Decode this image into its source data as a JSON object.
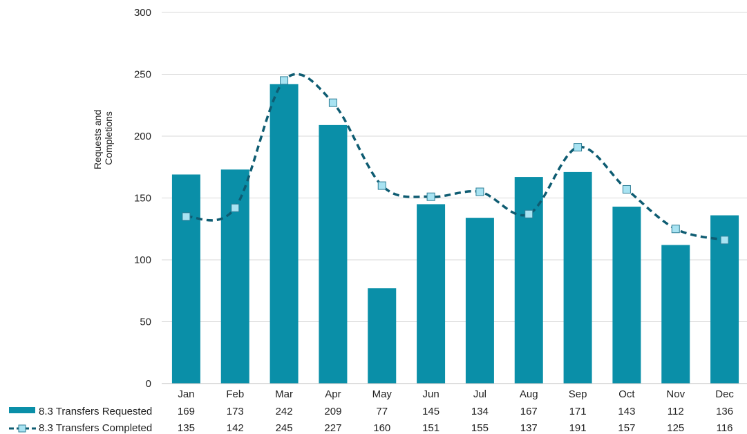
{
  "chart_data": {
    "type": "bar",
    "categories": [
      "Jan",
      "Feb",
      "Mar",
      "Apr",
      "May",
      "Jun",
      "Jul",
      "Aug",
      "Sep",
      "Oct",
      "Nov",
      "Dec"
    ],
    "series": [
      {
        "name": "8.3 Transfers Requested",
        "kind": "bar",
        "color": "#0A8FA8",
        "values": [
          169,
          173,
          242,
          209,
          77,
          145,
          134,
          167,
          171,
          143,
          112,
          136
        ]
      },
      {
        "name": "8.3 Transfers Completed",
        "kind": "line",
        "line_style": "dashed smooth",
        "color": "#0E5C72",
        "marker_color": "#A8E3F2",
        "values": [
          135,
          142,
          245,
          227,
          160,
          151,
          155,
          137,
          191,
          157,
          125,
          116
        ]
      }
    ],
    "ylabel_lines": [
      "Requests and",
      "Completions"
    ],
    "ylim": [
      0,
      300
    ],
    "yticks": [
      0,
      50,
      100,
      150,
      200,
      250,
      300
    ],
    "grid": true,
    "legend": "data-table-bottom"
  }
}
